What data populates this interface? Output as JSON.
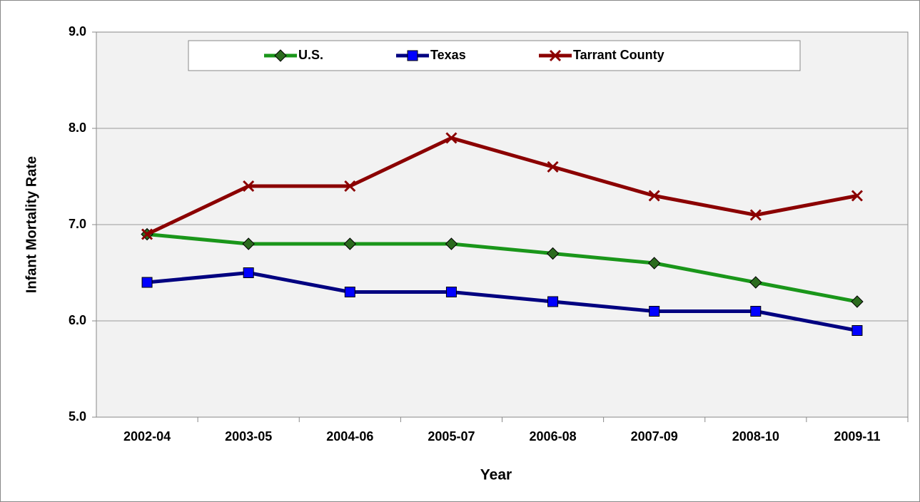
{
  "chart_data": {
    "type": "line",
    "x_label": "Year",
    "y_label": "Infant Mortality Rate",
    "categories": [
      "2002-04",
      "2003-05",
      "2004-06",
      "2005-07",
      "2006-08",
      "2007-09",
      "2008-10",
      "2009-11"
    ],
    "series": [
      {
        "name": "U.S.",
        "color": "#1a961a",
        "marker": "diamond",
        "marker_color": "#2b6b1e",
        "values": [
          6.9,
          6.8,
          6.8,
          6.8,
          6.7,
          6.6,
          6.4,
          6.2
        ]
      },
      {
        "name": "Texas",
        "color": "#000080",
        "marker": "square",
        "marker_color": "#0000ff",
        "values": [
          6.4,
          6.5,
          6.3,
          6.3,
          6.2,
          6.1,
          6.1,
          5.9
        ]
      },
      {
        "name": "Tarrant County",
        "color": "#8b0000",
        "marker": "x",
        "marker_color": "#8b0000",
        "values": [
          6.9,
          7.4,
          7.4,
          7.9,
          7.6,
          7.3,
          7.1,
          7.3
        ]
      }
    ],
    "ylim": [
      5,
      9
    ],
    "yticks": [
      {
        "value": 5,
        "label": "5.0"
      },
      {
        "value": 6,
        "label": "6.0"
      },
      {
        "value": 7,
        "label": "7.0"
      },
      {
        "value": 8,
        "label": "8.0"
      },
      {
        "value": 9,
        "label": "9.0"
      }
    ],
    "grid": true,
    "legend": "top"
  }
}
